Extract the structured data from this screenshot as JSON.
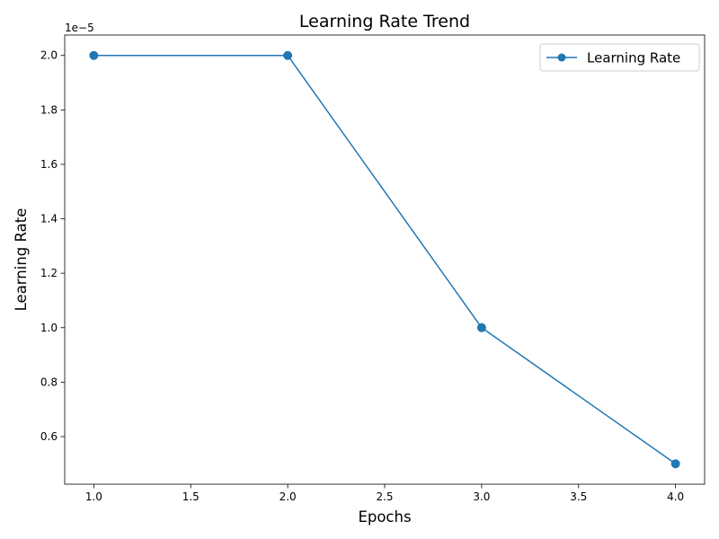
{
  "chart_data": {
    "type": "line",
    "title": "Learning Rate Trend",
    "xlabel": "Epochs",
    "ylabel": "Learning Rate",
    "x": [
      1,
      2,
      3,
      4
    ],
    "series": [
      {
        "name": "Learning Rate",
        "values": [
          2e-05,
          2e-05,
          1e-05,
          5e-06
        ],
        "color": "#1f77b4",
        "marker": "circle"
      }
    ],
    "xlim": [
      0.85,
      4.15
    ],
    "ylim": [
      4.25e-06,
      2.075e-05
    ],
    "x_ticks": [
      1.0,
      1.5,
      2.0,
      2.5,
      3.0,
      3.5,
      4.0
    ],
    "x_tick_labels": [
      "1.0",
      "1.5",
      "2.0",
      "2.5",
      "3.0",
      "3.5",
      "4.0"
    ],
    "y_ticks": [
      6e-06,
      8e-06,
      1e-05,
      1.2e-05,
      1.4e-05,
      1.6e-05,
      1.8e-05,
      2e-05
    ],
    "y_tick_labels": [
      "0.6",
      "0.8",
      "1.0",
      "1.2",
      "1.4",
      "1.6",
      "1.8",
      "2.0"
    ],
    "y_offset_label": "1e−5",
    "grid": false,
    "legend_position": "top-right"
  }
}
